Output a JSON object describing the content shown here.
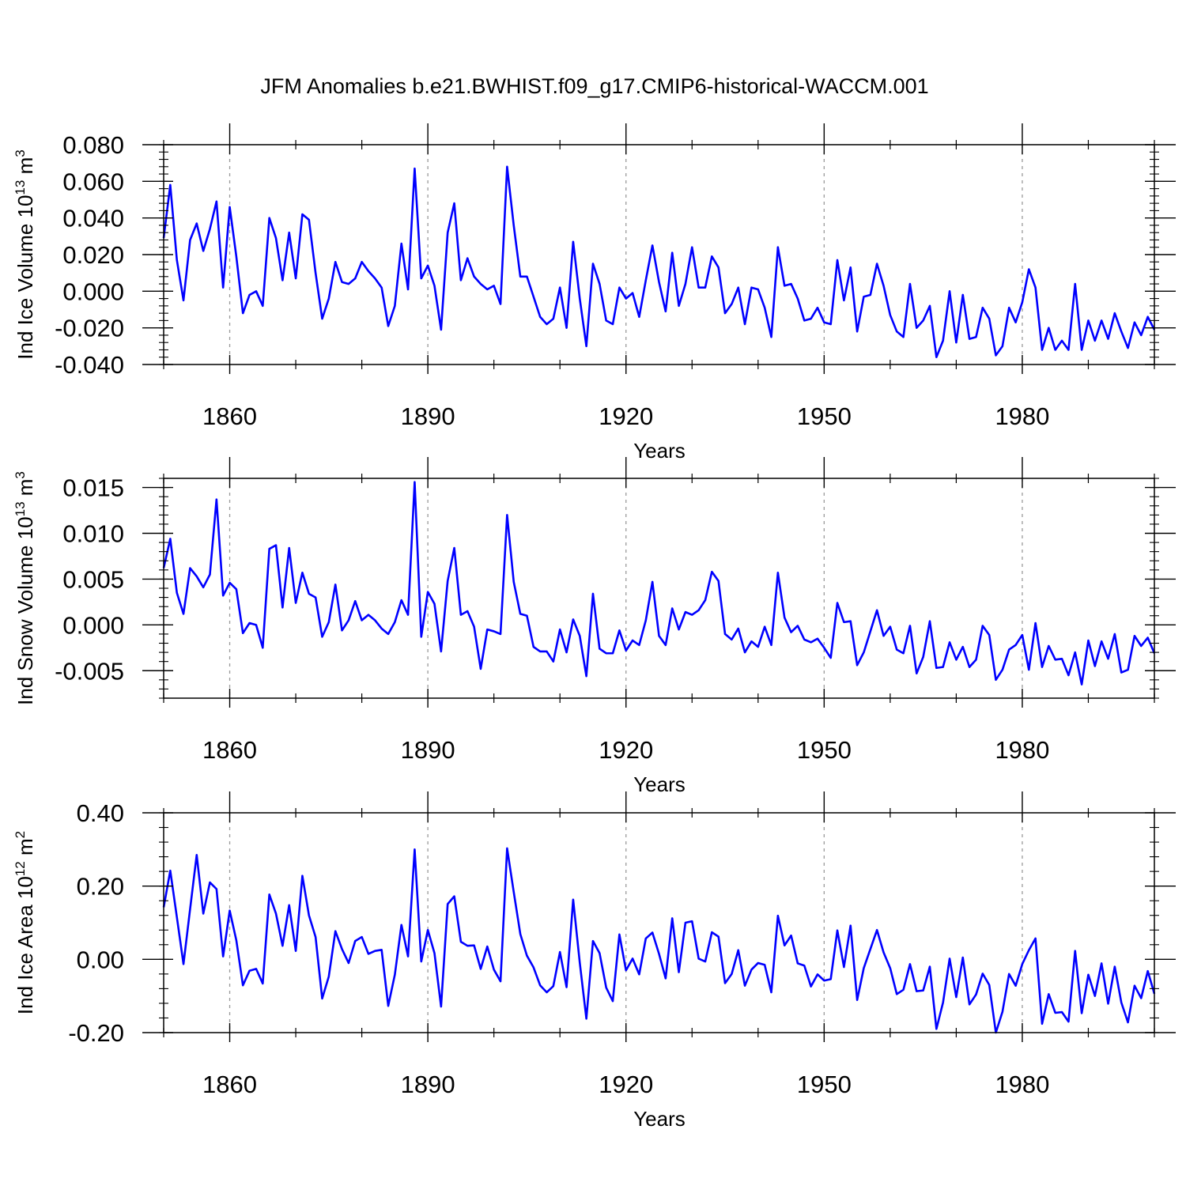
{
  "figure": {
    "title": "JFM Anomalies b.e21.BWHIST.f09_g17.CMIP6-historical-WACCM.001",
    "line_color": "#0000ff",
    "grid_color": "#9a9a9a"
  },
  "chart_data": [
    {
      "type": "line",
      "id": "ice-volume",
      "title": "",
      "xlabel": "Years",
      "ylabel_prefix": "Ind Ice Volume 10",
      "ylabel_exp": "13",
      "ylabel_unit": " m",
      "ylabel_unit_exp": "3",
      "xlim": [
        1850,
        2000
      ],
      "ylim": [
        -0.04,
        0.08
      ],
      "x_ticks": [
        1860,
        1890,
        1920,
        1950,
        1980
      ],
      "x_tick_labels": [
        "1860",
        "1890",
        "1920",
        "1950",
        "1980"
      ],
      "y_ticks": [
        -0.04,
        -0.02,
        0.0,
        0.02,
        0.04,
        0.06,
        0.08
      ],
      "y_tick_labels": [
        "-0.040",
        "-0.020",
        "0.000",
        "0.020",
        "0.040",
        "0.060",
        "0.080"
      ],
      "grid": "dashed vertical lines at x ticks",
      "x_start": 1850,
      "values": [
        0.029,
        0.058,
        0.017,
        -0.005,
        0.028,
        0.037,
        0.022,
        0.034,
        0.049,
        0.002,
        0.046,
        0.019,
        -0.012,
        -0.002,
        0.0,
        -0.008,
        0.04,
        0.029,
        0.006,
        0.032,
        0.007,
        0.042,
        0.039,
        0.01,
        -0.015,
        -0.004,
        0.016,
        0.005,
        0.004,
        0.007,
        0.016,
        0.011,
        0.007,
        0.002,
        -0.019,
        -0.008,
        0.026,
        0.001,
        0.067,
        0.007,
        0.014,
        0.003,
        -0.021,
        0.032,
        0.048,
        0.006,
        0.018,
        0.008,
        0.004,
        0.001,
        0.003,
        -0.007,
        0.068,
        0.036,
        0.008,
        0.008,
        -0.003,
        -0.014,
        -0.018,
        -0.015,
        0.002,
        -0.02,
        0.027,
        -0.004,
        -0.03,
        0.015,
        0.004,
        -0.016,
        -0.018,
        0.002,
        -0.004,
        -0.001,
        -0.014,
        0.006,
        0.025,
        0.005,
        -0.011,
        0.021,
        -0.008,
        0.004,
        0.024,
        0.002,
        0.002,
        0.019,
        0.013,
        -0.012,
        -0.007,
        0.002,
        -0.018,
        0.002,
        0.001,
        -0.009,
        -0.025,
        0.024,
        0.003,
        0.004,
        -0.004,
        -0.016,
        -0.015,
        -0.009,
        -0.017,
        -0.018,
        0.017,
        -0.005,
        0.013,
        -0.022,
        -0.003,
        -0.002,
        0.015,
        0.003,
        -0.013,
        -0.022,
        -0.025,
        0.004,
        -0.02,
        -0.016,
        -0.008,
        -0.036,
        -0.027,
        0.0,
        -0.028,
        -0.002,
        -0.026,
        -0.025,
        -0.009,
        -0.015,
        -0.035,
        -0.03,
        -0.009,
        -0.017,
        -0.006,
        0.012,
        0.002,
        -0.032,
        -0.02,
        -0.032,
        -0.027,
        -0.032,
        0.004,
        -0.032,
        -0.016,
        -0.027,
        -0.016,
        -0.026,
        -0.012,
        -0.022,
        -0.031,
        -0.017,
        -0.024,
        -0.014,
        -0.021
      ]
    },
    {
      "type": "line",
      "id": "snow-volume",
      "title": "",
      "xlabel": "Years",
      "ylabel_prefix": "Ind Snow Volume 10",
      "ylabel_exp": "13",
      "ylabel_unit": " m",
      "ylabel_unit_exp": "3",
      "xlim": [
        1850,
        2000
      ],
      "ylim": [
        -0.008,
        0.016
      ],
      "x_ticks": [
        1860,
        1890,
        1920,
        1950,
        1980
      ],
      "x_tick_labels": [
        "1860",
        "1890",
        "1920",
        "1950",
        "1980"
      ],
      "y_ticks": [
        -0.005,
        0.0,
        0.005,
        0.01,
        0.015
      ],
      "y_tick_labels": [
        "-0.005",
        "0.000",
        "0.005",
        "0.010",
        "0.015"
      ],
      "grid": "dashed vertical lines at x ticks",
      "x_start": 1850,
      "values": [
        0.0062,
        0.0094,
        0.0035,
        0.0012,
        0.0062,
        0.0053,
        0.0041,
        0.0055,
        0.0137,
        0.0032,
        0.0046,
        0.0039,
        -0.0009,
        0.0002,
        0.0,
        -0.0025,
        0.0083,
        0.0087,
        0.0019,
        0.0084,
        0.0024,
        0.0057,
        0.0034,
        0.003,
        -0.0013,
        0.0003,
        0.0044,
        -0.0006,
        0.0005,
        0.0026,
        0.0005,
        0.0011,
        0.0005,
        -0.0004,
        -0.001,
        0.0003,
        0.0027,
        0.0011,
        0.0156,
        -0.0013,
        0.0036,
        0.0023,
        -0.0029,
        0.0048,
        0.0084,
        0.0011,
        0.0015,
        -0.0002,
        -0.0048,
        -0.0005,
        -0.0007,
        -0.001,
        0.012,
        0.0047,
        0.0012,
        0.001,
        -0.0024,
        -0.0029,
        -0.0029,
        -0.004,
        -0.0005,
        -0.003,
        0.0006,
        -0.0012,
        -0.0056,
        0.0034,
        -0.0026,
        -0.0031,
        -0.0031,
        -0.0006,
        -0.0028,
        -0.0017,
        -0.0022,
        0.0005,
        0.0047,
        -0.0012,
        -0.0022,
        0.0018,
        -0.0005,
        0.0014,
        0.0011,
        0.0016,
        0.0027,
        0.0058,
        0.0048,
        -0.001,
        -0.0016,
        -0.0004,
        -0.003,
        -0.0018,
        -0.0024,
        -0.0002,
        -0.0022,
        0.0057,
        0.0008,
        -0.0008,
        -0.0001,
        -0.0016,
        -0.0019,
        -0.0015,
        -0.0025,
        -0.0036,
        0.0024,
        0.0003,
        0.0004,
        -0.0044,
        -0.003,
        -0.0007,
        0.0016,
        -0.0012,
        -0.0002,
        -0.0027,
        -0.0031,
        -0.0001,
        -0.0053,
        -0.0035,
        0.0004,
        -0.0047,
        -0.0046,
        -0.0019,
        -0.0038,
        -0.0024,
        -0.0046,
        -0.0038,
        -0.0001,
        -0.0011,
        -0.006,
        -0.0049,
        -0.0027,
        -0.0022,
        -0.0011,
        -0.0049,
        0.0002,
        -0.0046,
        -0.0023,
        -0.0038,
        -0.0037,
        -0.0055,
        -0.003,
        -0.0065,
        -0.0017,
        -0.0045,
        -0.0018,
        -0.0037,
        -0.001,
        -0.0052,
        -0.0049,
        -0.0012,
        -0.0023,
        -0.0014,
        -0.0031
      ]
    },
    {
      "type": "line",
      "id": "ice-area",
      "title": "",
      "xlabel": "Years",
      "ylabel_prefix": "Ind Ice Area 10",
      "ylabel_exp": "12",
      "ylabel_unit": " m",
      "ylabel_unit_exp": "2",
      "xlim": [
        1850,
        2000
      ],
      "ylim": [
        -0.2,
        0.4
      ],
      "x_ticks": [
        1860,
        1890,
        1920,
        1950,
        1980
      ],
      "x_tick_labels": [
        "1860",
        "1890",
        "1920",
        "1950",
        "1980"
      ],
      "y_ticks": [
        -0.2,
        0.0,
        0.2,
        0.4
      ],
      "y_tick_labels": [
        "-0.20",
        "0.00",
        "0.20",
        "0.40"
      ],
      "grid": "dashed vertical lines at x ticks",
      "x_start": 1850,
      "values": [
        0.142,
        0.242,
        0.115,
        -0.013,
        0.137,
        0.285,
        0.125,
        0.21,
        0.192,
        0.008,
        0.133,
        0.052,
        -0.071,
        -0.031,
        -0.026,
        -0.066,
        0.177,
        0.125,
        0.037,
        0.148,
        0.023,
        0.228,
        0.12,
        0.061,
        -0.107,
        -0.047,
        0.077,
        0.028,
        -0.01,
        0.05,
        0.061,
        0.015,
        0.023,
        0.026,
        -0.127,
        -0.042,
        0.094,
        0.008,
        0.3,
        -0.006,
        0.08,
        0.017,
        -0.129,
        0.151,
        0.172,
        0.048,
        0.037,
        0.038,
        -0.026,
        0.035,
        -0.028,
        -0.06,
        0.303,
        0.184,
        0.069,
        0.01,
        -0.022,
        -0.071,
        -0.09,
        -0.073,
        0.02,
        -0.076,
        0.163,
        -0.009,
        -0.162,
        0.05,
        0.017,
        -0.077,
        -0.114,
        0.068,
        -0.03,
        0.002,
        -0.041,
        0.057,
        0.073,
        0.015,
        -0.052,
        0.112,
        -0.035,
        0.1,
        0.104,
        0.002,
        -0.006,
        0.074,
        0.062,
        -0.065,
        -0.04,
        0.025,
        -0.072,
        -0.028,
        -0.01,
        -0.015,
        -0.09,
        0.119,
        0.038,
        0.065,
        -0.011,
        -0.017,
        -0.074,
        -0.041,
        -0.058,
        -0.054,
        0.079,
        -0.021,
        0.092,
        -0.111,
        -0.024,
        0.028,
        0.08,
        0.019,
        -0.024,
        -0.095,
        -0.083,
        -0.013,
        -0.087,
        -0.085,
        -0.02,
        -0.19,
        -0.118,
        0.002,
        -0.103,
        0.005,
        -0.123,
        -0.096,
        -0.039,
        -0.07,
        -0.2,
        -0.143,
        -0.04,
        -0.072,
        -0.013,
        0.025,
        0.057,
        -0.176,
        -0.095,
        -0.146,
        -0.144,
        -0.17,
        0.023,
        -0.147,
        -0.042,
        -0.1,
        -0.011,
        -0.121,
        -0.02,
        -0.118,
        -0.172,
        -0.072,
        -0.106,
        -0.032,
        -0.094
      ]
    }
  ]
}
